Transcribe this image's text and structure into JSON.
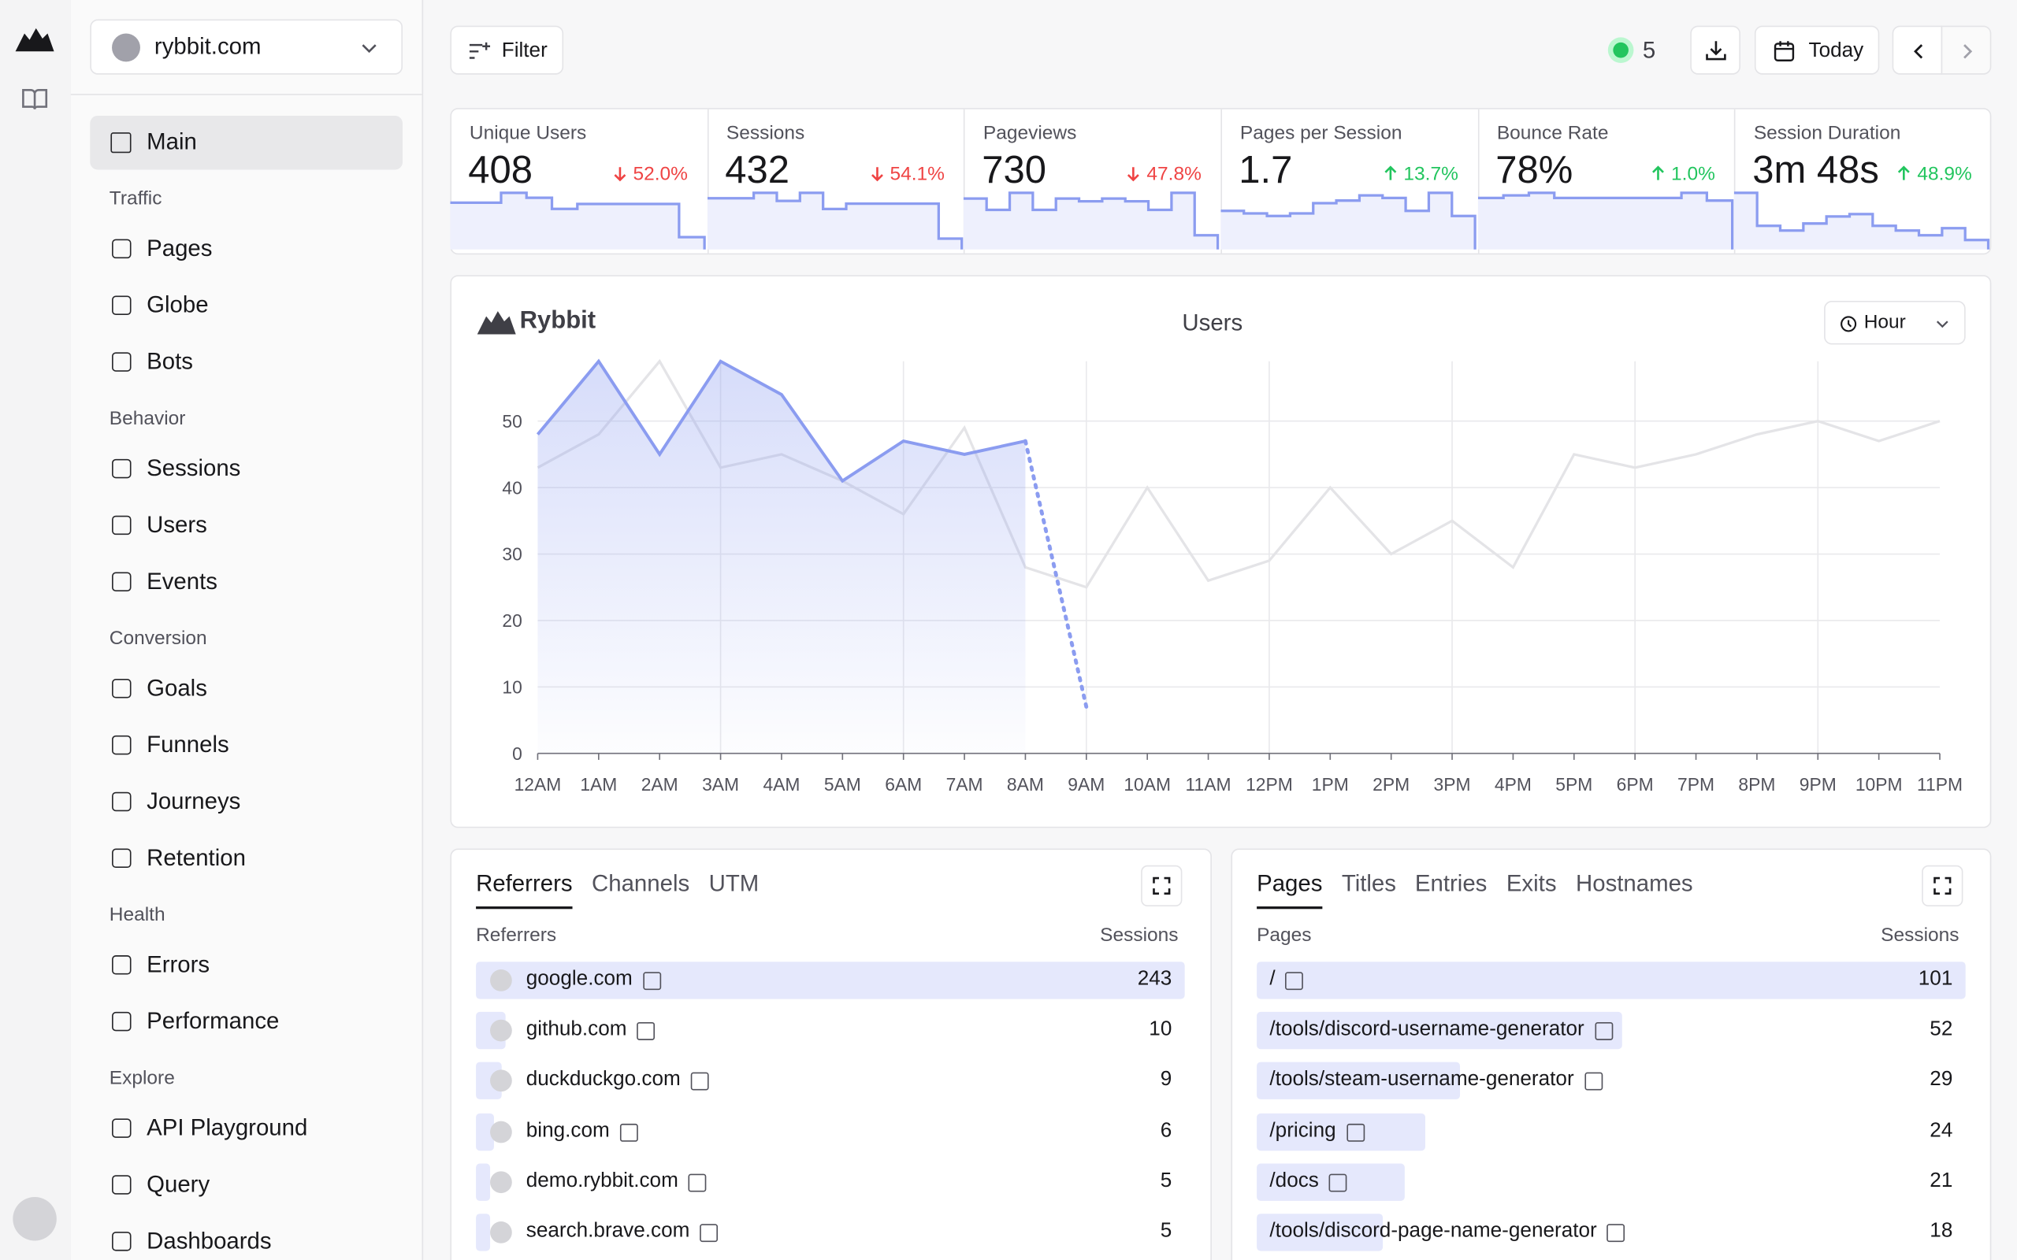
{
  "site": "rybbit.com",
  "filter": "Filter",
  "live_count": 5,
  "date_range": "Today",
  "nav": {
    "main": "Main",
    "sections": [
      {
        "title": "Traffic",
        "items": [
          "Pages",
          "Globe",
          "Bots"
        ]
      },
      {
        "title": "Behavior",
        "items": [
          "Sessions",
          "Users",
          "Events"
        ]
      },
      {
        "title": "Conversion",
        "items": [
          "Goals",
          "Funnels",
          "Journeys",
          "Retention"
        ]
      },
      {
        "title": "Health",
        "items": [
          "Errors",
          "Performance"
        ]
      },
      {
        "title": "Explore",
        "items": [
          "API Playground",
          "Query",
          "Dashboards"
        ]
      }
    ]
  },
  "stats": [
    {
      "label": "Unique Users",
      "value": "408",
      "change": "52.0%",
      "direction": "down",
      "trend": [
        38,
        38,
        46,
        42,
        33,
        37,
        37,
        37,
        37,
        10
      ]
    },
    {
      "label": "Sessions",
      "value": "432",
      "change": "54.1%",
      "direction": "down",
      "trend": [
        38,
        38,
        42,
        36,
        42,
        30,
        34,
        34,
        34,
        34,
        8
      ]
    },
    {
      "label": "Pageviews",
      "value": "730",
      "change": "47.8%",
      "direction": "down",
      "trend": [
        36,
        28,
        40,
        28,
        36,
        34,
        36,
        34,
        28,
        40,
        10
      ]
    },
    {
      "label": "Pages per Session",
      "value": "1.7",
      "change": "13.7%",
      "direction": "up",
      "trend": [
        30,
        28,
        26,
        28,
        36,
        38,
        42,
        40,
        30,
        44,
        26
      ]
    },
    {
      "label": "Bounce Rate",
      "value": "78%",
      "change": "1.0%",
      "direction": "up",
      "trend": [
        40,
        42,
        44,
        40,
        40,
        40,
        40,
        40,
        44,
        38
      ]
    },
    {
      "label": "Session Duration",
      "value": "3m 48s",
      "change": "48.9%",
      "direction": "up",
      "trend": [
        48,
        20,
        16,
        22,
        28,
        30,
        20,
        16,
        12,
        18,
        8
      ]
    }
  ],
  "chart_data": {
    "type": "line",
    "brand": "Rybbit",
    "title": "Users",
    "granularity": "Hour",
    "categories": [
      "12AM",
      "1AM",
      "2AM",
      "3AM",
      "4AM",
      "5AM",
      "6AM",
      "7AM",
      "8AM",
      "9AM",
      "10AM",
      "11AM",
      "12PM",
      "1PM",
      "2PM",
      "3PM",
      "4PM",
      "5PM",
      "6PM",
      "7PM",
      "8PM",
      "9PM",
      "10PM",
      "11PM"
    ],
    "ylim": [
      0,
      59
    ],
    "yticks": [
      0,
      10,
      20,
      30,
      40,
      50
    ],
    "grid": true,
    "series": [
      {
        "color": "#e4e4e7",
        "values": [
          43,
          48,
          59,
          43,
          45,
          41,
          36,
          49,
          28,
          25,
          40,
          26,
          29,
          40,
          30,
          35,
          28,
          45,
          43,
          45,
          48,
          50,
          47,
          50
        ]
      },
      {
        "color": "#8b9cf0",
        "values": [
          48,
          59,
          45,
          59,
          54,
          41,
          47,
          45,
          47,
          7,
          null,
          null,
          null,
          null,
          null,
          null,
          null,
          null,
          null,
          null,
          null,
          null,
          null,
          null
        ]
      }
    ]
  },
  "referrers": {
    "tabs": [
      "Referrers",
      "Channels",
      "UTM"
    ],
    "columns": [
      "Referrers",
      "Sessions"
    ],
    "rows": [
      {
        "name": "google.com",
        "sessions": 243
      },
      {
        "name": "github.com",
        "sessions": 10
      },
      {
        "name": "duckduckgo.com",
        "sessions": 9
      },
      {
        "name": "bing.com",
        "sessions": 6
      },
      {
        "name": "demo.rybbit.com",
        "sessions": 5
      },
      {
        "name": "search.brave.com",
        "sessions": 5
      }
    ]
  },
  "pages": {
    "tabs": [
      "Pages",
      "Titles",
      "Entries",
      "Exits",
      "Hostnames"
    ],
    "columns": [
      "Pages",
      "Sessions"
    ],
    "rows": [
      {
        "name": "/",
        "sessions": 101
      },
      {
        "name": "/tools/discord-username-generator",
        "sessions": 52
      },
      {
        "name": "/tools/steam-username-generator",
        "sessions": 29
      },
      {
        "name": "/pricing",
        "sessions": 24
      },
      {
        "name": "/docs",
        "sessions": 21
      },
      {
        "name": "/tools/discord-page-name-generator",
        "sessions": 18
      }
    ]
  }
}
